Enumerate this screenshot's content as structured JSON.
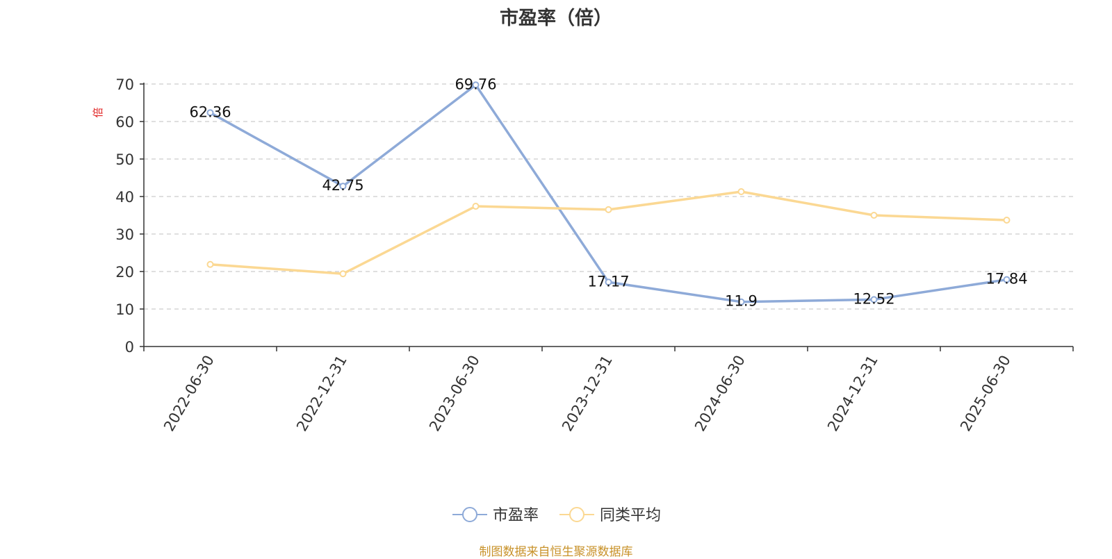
{
  "chart_data": {
    "type": "line",
    "title": "市盈率（倍）",
    "ylabel": "倍",
    "categories": [
      "2022-06-30",
      "2022-12-31",
      "2023-06-30",
      "2023-12-31",
      "2024-06-30",
      "2024-12-31",
      "2025-06-30"
    ],
    "ylim": [
      0,
      70
    ],
    "yticks": [
      0,
      10,
      20,
      30,
      40,
      50,
      60,
      70
    ],
    "grid": true,
    "legend_position": "bottom",
    "series": [
      {
        "name": "市盈率",
        "color": "#8eaad8",
        "values": [
          62.36,
          42.75,
          69.76,
          17.17,
          11.9,
          12.52,
          17.84
        ],
        "labels": [
          "62.36",
          "42.75",
          "69.76",
          "17.17",
          "11.9",
          "12.52",
          "17.84"
        ]
      },
      {
        "name": "同类平均",
        "color": "#fbd893",
        "values": [
          21.9,
          19.4,
          37.4,
          36.5,
          41.3,
          35.0,
          33.7
        ]
      }
    ]
  },
  "source_note": "制图数据来自恒生聚源数据库"
}
